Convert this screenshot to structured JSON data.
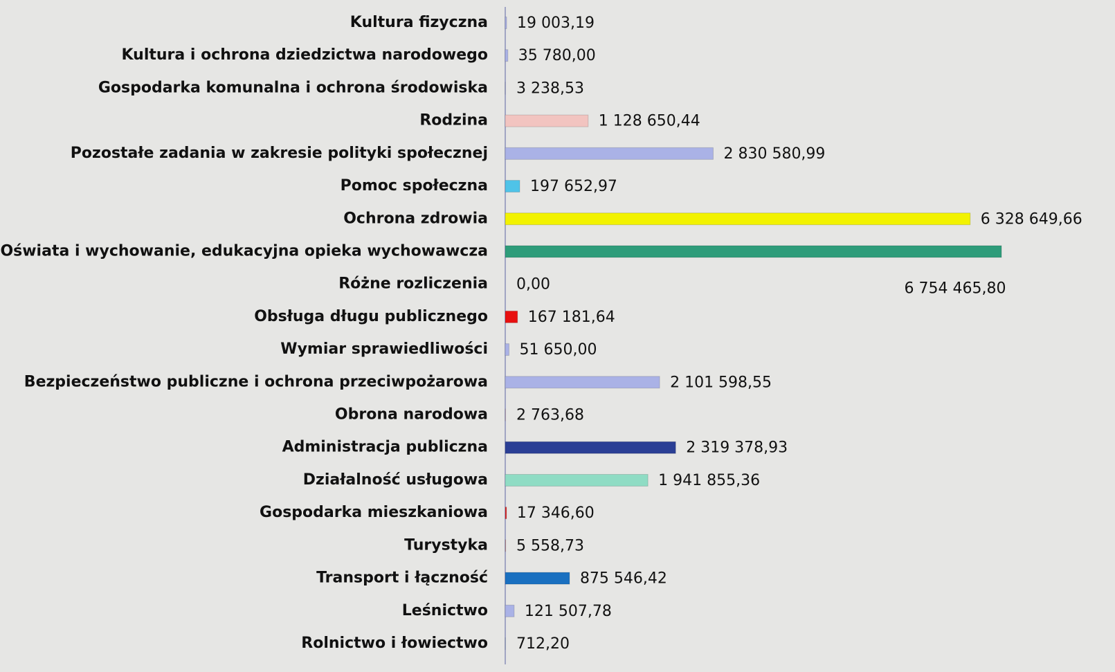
{
  "chart_data": {
    "type": "bar",
    "orientation": "horizontal",
    "categories": [
      "Kultura fizyczna",
      "Kultura i ochrona dziedzictwa narodowego",
      "Gospodarka komunalna i ochrona środowiska",
      "Rodzina",
      "Pozostałe zadania w zakresie polityki społecznej",
      "Pomoc społeczna",
      "Ochrona zdrowia",
      "Oświata i wychowanie, edukacyjna opieka wychowawcza",
      "Różne rozliczenia",
      "Obsługa długu publicznego",
      "Wymiar sprawiedliwości",
      "Bezpieczeństwo publiczne i ochrona przeciwpożarowa",
      "Obrona narodowa",
      "Administracja publiczna",
      "Działalność usługowa",
      "Gospodarka mieszkaniowa",
      "Turystyka",
      "Transport i łączność",
      "Leśnictwo",
      "Rolnictwo i łowiectwo"
    ],
    "values": [
      19003.19,
      35780.0,
      3238.53,
      1128650.44,
      2830580.99,
      197652.97,
      6328649.66,
      6754465.8,
      0.0,
      167181.64,
      51650.0,
      2101598.55,
      2763.68,
      2319378.93,
      1941855.36,
      17346.6,
      5558.73,
      875546.42,
      121507.78,
      712.2
    ],
    "value_labels": [
      "19 003,19",
      "35 780,00",
      "3 238,53",
      "1 128 650,44",
      "2 830 580,99",
      "197 652,97",
      "6 328 649,66",
      "6 754 465,80",
      "0,00",
      "167 181,64",
      "51 650,00",
      "2 101 598,55",
      "2 763,68",
      "2 319 378,93",
      "1 941 855,36",
      "17 346,60",
      "5 558,73",
      "875 546,42",
      "121 507,78",
      "712,20"
    ],
    "colors": [
      "#aab2e6",
      "#aab2e6",
      "#aab2e6",
      "#f2c4c0",
      "#aab2e6",
      "#4fc3e8",
      "#f2f200",
      "#2e9c7a",
      "#aab2e6",
      "#e81010",
      "#aab2e6",
      "#aab2e6",
      "#e09090",
      "#2b3f95",
      "#8fdcc4",
      "#e02020",
      "#c07070",
      "#1a70c0",
      "#aab2e6",
      "#4fa8b0"
    ]
  }
}
